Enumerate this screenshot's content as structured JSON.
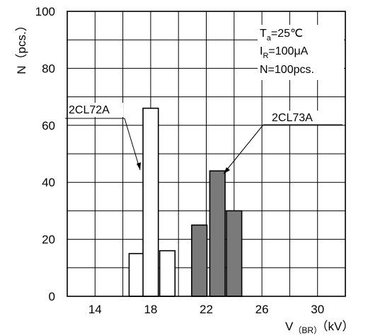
{
  "chart_data": {
    "type": "bar",
    "title": "",
    "ylabel": "N（pcs.）",
    "xlabel": {
      "main": "V",
      "sub": "（BR）",
      "unit": "（kV）"
    },
    "xlim": [
      12,
      32
    ],
    "ylim": [
      0,
      100
    ],
    "x_ticks": [
      "14",
      "18",
      "22",
      "26",
      "30"
    ],
    "y_ticks": [
      "0",
      "20",
      "40",
      "60",
      "80",
      "100"
    ],
    "grid": true,
    "conditions": [
      {
        "main": "T",
        "sub": "a",
        "rest": "=25℃"
      },
      {
        "main": "I",
        "sub": "R",
        "rest": "=100μA"
      },
      {
        "main": "N=100pcs.",
        "sub": "",
        "rest": ""
      }
    ],
    "series": [
      {
        "name": "2CL72A",
        "fill": "#ffffff",
        "bars": [
          {
            "x": 17,
            "value": 15
          },
          {
            "x": 18,
            "value": 66
          },
          {
            "x": 19.2,
            "value": 16
          }
        ]
      },
      {
        "name": "2CL73A",
        "fill": "#7a7a7a",
        "bars": [
          {
            "x": 21.5,
            "value": 25
          },
          {
            "x": 22.8,
            "value": 44
          },
          {
            "x": 24,
            "value": 30
          }
        ]
      }
    ]
  }
}
